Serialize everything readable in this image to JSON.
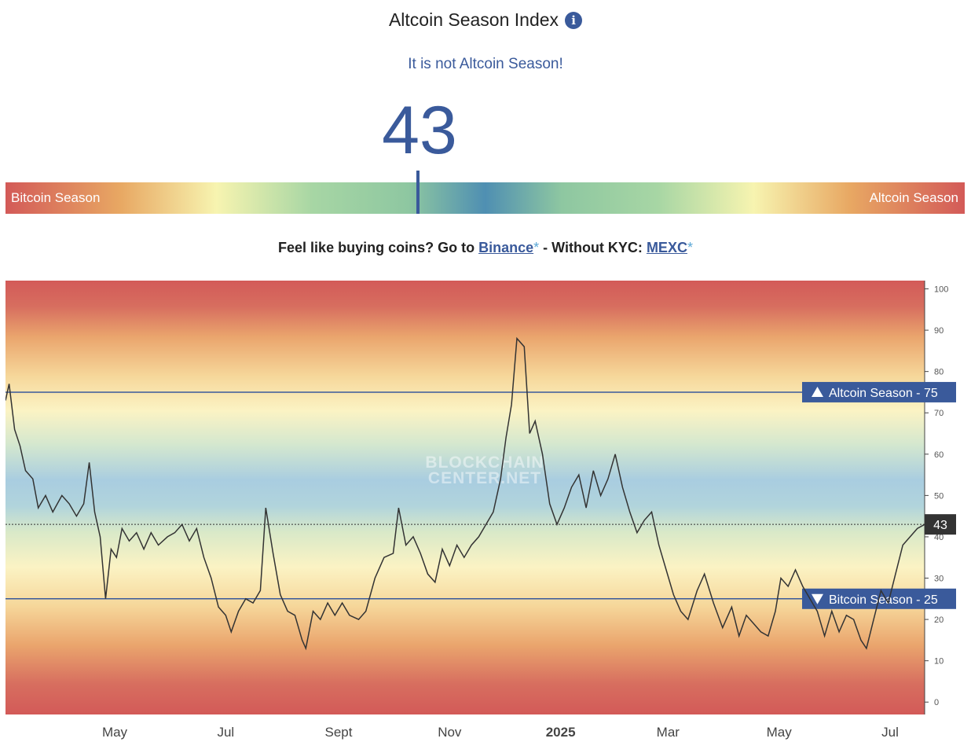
{
  "header": {
    "title": "Altcoin Season Index",
    "info_glyph": "i",
    "status": "It is not Altcoin Season!",
    "value": "43"
  },
  "gauge": {
    "left_label": "Bitcoin Season",
    "right_label": "Altcoin Season",
    "value": 43
  },
  "promo": {
    "prefix": "Feel like buying coins? Go to ",
    "link1": "Binance",
    "star": "*",
    "middle": " - Without KYC: ",
    "link2": "MEXC"
  },
  "colors": {
    "accent": "#3a5a9b",
    "bitcoin_zone": "#d35a58",
    "neutral_zone": "#4f8fb2",
    "link_star": "#5aa7d6"
  },
  "chart_data": {
    "type": "line",
    "watermark": [
      "BLOCKCHAIN",
      "CENTER.NET"
    ],
    "x_tick_labels": [
      "May",
      "Jul",
      "Sept",
      "Nov",
      "2025",
      "Mar",
      "May",
      "Jul"
    ],
    "x_tick_dates": [
      "2024-05-01",
      "2024-07-01",
      "2024-09-01",
      "2024-11-01",
      "2025-01-01",
      "2025-03-01",
      "2025-05-01",
      "2025-07-01"
    ],
    "xlim": [
      "2024-03-02",
      "2025-07-20"
    ],
    "ylim": [
      -3,
      102
    ],
    "y_ticks": [
      0,
      10,
      20,
      30,
      40,
      50,
      60,
      70,
      80,
      90,
      100
    ],
    "reference_lines": [
      {
        "label": "Altcoin Season",
        "value": 75,
        "direction": "up"
      },
      {
        "label": "Bitcoin Season",
        "value": 25,
        "direction": "down"
      }
    ],
    "current_value": 43,
    "series": [
      {
        "points": [
          [
            "2024-03-02",
            73
          ],
          [
            "2024-03-04",
            77
          ],
          [
            "2024-03-07",
            66
          ],
          [
            "2024-03-10",
            62
          ],
          [
            "2024-03-13",
            56
          ],
          [
            "2024-03-17",
            54
          ],
          [
            "2024-03-20",
            47
          ],
          [
            "2024-03-24",
            50
          ],
          [
            "2024-03-28",
            46
          ],
          [
            "2024-04-02",
            50
          ],
          [
            "2024-04-06",
            48
          ],
          [
            "2024-04-10",
            45
          ],
          [
            "2024-04-14",
            48
          ],
          [
            "2024-04-17",
            58
          ],
          [
            "2024-04-20",
            46
          ],
          [
            "2024-04-23",
            40
          ],
          [
            "2024-04-26",
            25
          ],
          [
            "2024-04-29",
            37
          ],
          [
            "2024-05-02",
            35
          ],
          [
            "2024-05-05",
            42
          ],
          [
            "2024-05-09",
            39
          ],
          [
            "2024-05-13",
            41
          ],
          [
            "2024-05-17",
            37
          ],
          [
            "2024-05-21",
            41
          ],
          [
            "2024-05-25",
            38
          ],
          [
            "2024-05-30",
            40
          ],
          [
            "2024-06-03",
            41
          ],
          [
            "2024-06-07",
            43
          ],
          [
            "2024-06-11",
            39
          ],
          [
            "2024-06-15",
            42
          ],
          [
            "2024-06-19",
            35
          ],
          [
            "2024-06-23",
            30
          ],
          [
            "2024-06-27",
            23
          ],
          [
            "2024-07-01",
            21
          ],
          [
            "2024-07-04",
            17
          ],
          [
            "2024-07-08",
            22
          ],
          [
            "2024-07-12",
            25
          ],
          [
            "2024-07-16",
            24
          ],
          [
            "2024-07-20",
            27
          ],
          [
            "2024-07-23",
            47
          ],
          [
            "2024-07-27",
            36
          ],
          [
            "2024-07-31",
            26
          ],
          [
            "2024-08-04",
            22
          ],
          [
            "2024-08-08",
            21
          ],
          [
            "2024-08-12",
            15
          ],
          [
            "2024-08-14",
            13
          ],
          [
            "2024-08-18",
            22
          ],
          [
            "2024-08-22",
            20
          ],
          [
            "2024-08-26",
            24
          ],
          [
            "2024-08-30",
            21
          ],
          [
            "2024-09-03",
            24
          ],
          [
            "2024-09-07",
            21
          ],
          [
            "2024-09-12",
            20
          ],
          [
            "2024-09-16",
            22
          ],
          [
            "2024-09-21",
            30
          ],
          [
            "2024-09-26",
            35
          ],
          [
            "2024-10-01",
            36
          ],
          [
            "2024-10-04",
            47
          ],
          [
            "2024-10-08",
            38
          ],
          [
            "2024-10-12",
            40
          ],
          [
            "2024-10-16",
            36
          ],
          [
            "2024-10-20",
            31
          ],
          [
            "2024-10-24",
            29
          ],
          [
            "2024-10-28",
            37
          ],
          [
            "2024-11-01",
            33
          ],
          [
            "2024-11-05",
            38
          ],
          [
            "2024-11-09",
            35
          ],
          [
            "2024-11-13",
            38
          ],
          [
            "2024-11-17",
            40
          ],
          [
            "2024-11-21",
            43
          ],
          [
            "2024-11-25",
            46
          ],
          [
            "2024-11-29",
            54
          ],
          [
            "2024-12-02",
            64
          ],
          [
            "2024-12-05",
            72
          ],
          [
            "2024-12-08",
            88
          ],
          [
            "2024-12-12",
            86
          ],
          [
            "2024-12-15",
            65
          ],
          [
            "2024-12-18",
            68
          ],
          [
            "2024-12-22",
            60
          ],
          [
            "2024-12-26",
            48
          ],
          [
            "2024-12-30",
            43
          ],
          [
            "2025-01-03",
            47
          ],
          [
            "2025-01-07",
            52
          ],
          [
            "2025-01-11",
            55
          ],
          [
            "2025-01-15",
            47
          ],
          [
            "2025-01-19",
            56
          ],
          [
            "2025-01-23",
            50
          ],
          [
            "2025-01-27",
            54
          ],
          [
            "2025-01-31",
            60
          ],
          [
            "2025-02-04",
            52
          ],
          [
            "2025-02-08",
            46
          ],
          [
            "2025-02-12",
            41
          ],
          [
            "2025-02-16",
            44
          ],
          [
            "2025-02-20",
            46
          ],
          [
            "2025-02-24",
            38
          ],
          [
            "2025-02-28",
            32
          ],
          [
            "2025-03-04",
            26
          ],
          [
            "2025-03-08",
            22
          ],
          [
            "2025-03-12",
            20
          ],
          [
            "2025-03-17",
            27
          ],
          [
            "2025-03-21",
            31
          ],
          [
            "2025-03-26",
            24
          ],
          [
            "2025-03-31",
            18
          ],
          [
            "2025-04-05",
            23
          ],
          [
            "2025-04-09",
            16
          ],
          [
            "2025-04-13",
            21
          ],
          [
            "2025-04-17",
            19
          ],
          [
            "2025-04-21",
            17
          ],
          [
            "2025-04-25",
            16
          ],
          [
            "2025-04-29",
            22
          ],
          [
            "2025-05-02",
            30
          ],
          [
            "2025-05-06",
            28
          ],
          [
            "2025-05-10",
            32
          ],
          [
            "2025-05-14",
            28
          ],
          [
            "2025-05-18",
            25
          ],
          [
            "2025-05-22",
            22
          ],
          [
            "2025-05-26",
            16
          ],
          [
            "2025-05-30",
            22
          ],
          [
            "2025-06-03",
            17
          ],
          [
            "2025-06-07",
            21
          ],
          [
            "2025-06-11",
            20
          ],
          [
            "2025-06-15",
            15
          ],
          [
            "2025-06-18",
            13
          ],
          [
            "2025-06-22",
            20
          ],
          [
            "2025-06-26",
            27
          ],
          [
            "2025-06-30",
            24
          ],
          [
            "2025-07-04",
            31
          ],
          [
            "2025-07-08",
            38
          ],
          [
            "2025-07-12",
            40
          ],
          [
            "2025-07-16",
            42
          ],
          [
            "2025-07-20",
            43
          ]
        ]
      }
    ]
  }
}
